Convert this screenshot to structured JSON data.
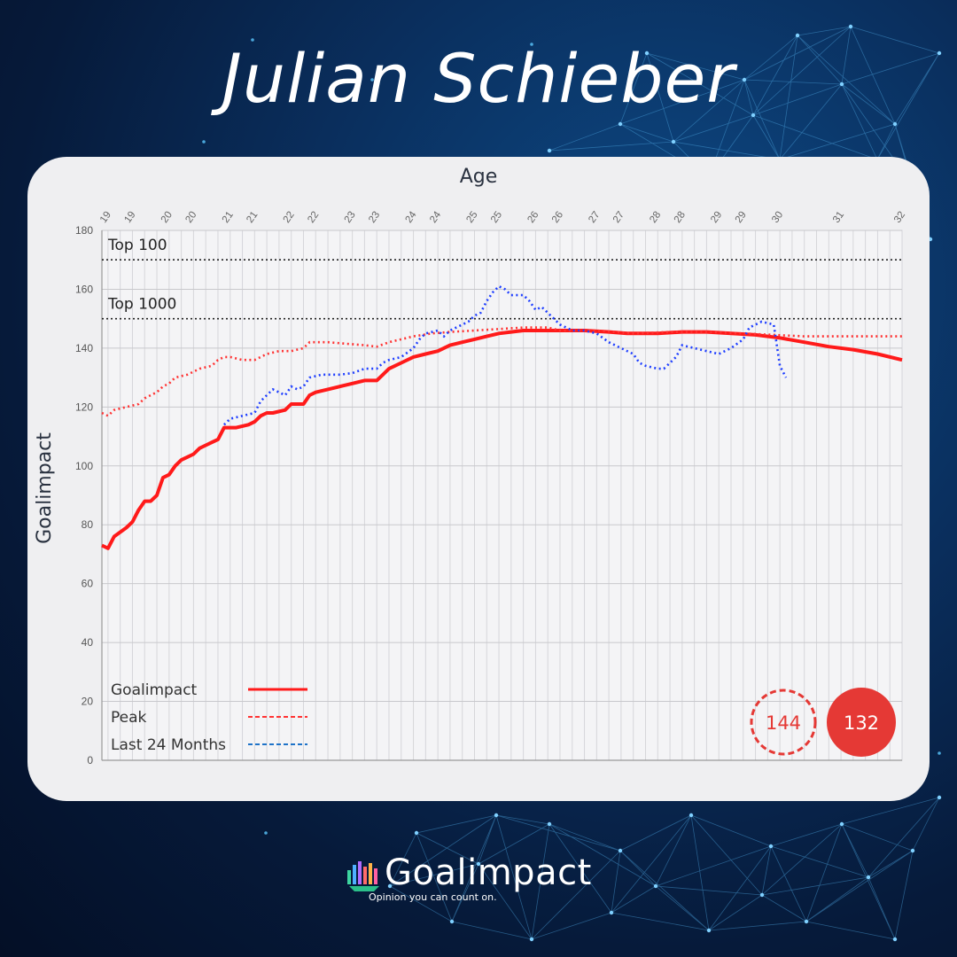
{
  "header": {
    "title": "Julian Schieber"
  },
  "brand": {
    "name": "Goalimpact",
    "tagline": "Opinion you can count on."
  },
  "colors": {
    "goalimpact": "#ff1a1a",
    "peak": "#ff3333",
    "last24": "#1f3fff",
    "badge_red": "#e53935",
    "card_bg": "#efeff1"
  },
  "chart_data": {
    "type": "line",
    "xlabel": "Age",
    "ylabel": "Goalimpact",
    "xlim": [
      18.9,
      32.0
    ],
    "ylim": [
      0,
      180
    ],
    "y_ticks": [
      0,
      20,
      40,
      60,
      80,
      100,
      120,
      140,
      160,
      180
    ],
    "x_tick_labels": [
      {
        "age": 19.0,
        "label": "19"
      },
      {
        "age": 19.4,
        "label": "19"
      },
      {
        "age": 20.0,
        "label": "20"
      },
      {
        "age": 20.4,
        "label": "20"
      },
      {
        "age": 21.0,
        "label": "21"
      },
      {
        "age": 21.4,
        "label": "21"
      },
      {
        "age": 22.0,
        "label": "22"
      },
      {
        "age": 22.4,
        "label": "22"
      },
      {
        "age": 23.0,
        "label": "23"
      },
      {
        "age": 23.4,
        "label": "23"
      },
      {
        "age": 24.0,
        "label": "24"
      },
      {
        "age": 24.4,
        "label": "24"
      },
      {
        "age": 25.0,
        "label": "25"
      },
      {
        "age": 25.4,
        "label": "25"
      },
      {
        "age": 26.0,
        "label": "26"
      },
      {
        "age": 26.4,
        "label": "26"
      },
      {
        "age": 27.0,
        "label": "27"
      },
      {
        "age": 27.4,
        "label": "27"
      },
      {
        "age": 28.0,
        "label": "28"
      },
      {
        "age": 28.4,
        "label": "28"
      },
      {
        "age": 29.0,
        "label": "29"
      },
      {
        "age": 29.4,
        "label": "29"
      },
      {
        "age": 30.0,
        "label": "30"
      },
      {
        "age": 31.0,
        "label": "31"
      },
      {
        "age": 32.0,
        "label": "32"
      }
    ],
    "reference_lines": [
      {
        "label": "Top 100",
        "y": 170
      },
      {
        "label": "Top 1000",
        "y": 150
      }
    ],
    "series": [
      {
        "name": "Goalimpact",
        "style": "solid",
        "points": [
          [
            18.9,
            73
          ],
          [
            19.0,
            72
          ],
          [
            19.1,
            76
          ],
          [
            19.3,
            79
          ],
          [
            19.4,
            81
          ],
          [
            19.5,
            85
          ],
          [
            19.6,
            88
          ],
          [
            19.7,
            88
          ],
          [
            19.8,
            90
          ],
          [
            19.9,
            96
          ],
          [
            20.0,
            97
          ],
          [
            20.1,
            100
          ],
          [
            20.2,
            102
          ],
          [
            20.3,
            103
          ],
          [
            20.4,
            104
          ],
          [
            20.5,
            106
          ],
          [
            20.6,
            107
          ],
          [
            20.7,
            108
          ],
          [
            20.8,
            109
          ],
          [
            20.9,
            113
          ],
          [
            21.0,
            113
          ],
          [
            21.1,
            113
          ],
          [
            21.3,
            114
          ],
          [
            21.4,
            115
          ],
          [
            21.5,
            117
          ],
          [
            21.6,
            118
          ],
          [
            21.7,
            118
          ],
          [
            21.9,
            119
          ],
          [
            22.0,
            121
          ],
          [
            22.2,
            121
          ],
          [
            22.3,
            124
          ],
          [
            22.4,
            125
          ],
          [
            22.6,
            126
          ],
          [
            22.8,
            127
          ],
          [
            23.0,
            128
          ],
          [
            23.2,
            129
          ],
          [
            23.4,
            129
          ],
          [
            23.5,
            131
          ],
          [
            23.6,
            133
          ],
          [
            23.8,
            135
          ],
          [
            24.0,
            137
          ],
          [
            24.2,
            138
          ],
          [
            24.4,
            139
          ],
          [
            24.6,
            141
          ],
          [
            24.8,
            142
          ],
          [
            25.0,
            143
          ],
          [
            25.2,
            144
          ],
          [
            25.4,
            145
          ],
          [
            25.6,
            145.5
          ],
          [
            25.8,
            146
          ],
          [
            26.0,
            146
          ],
          [
            26.2,
            146
          ],
          [
            26.4,
            146
          ],
          [
            26.8,
            146
          ],
          [
            27.2,
            145.5
          ],
          [
            27.5,
            145
          ],
          [
            28.0,
            145
          ],
          [
            28.4,
            145.5
          ],
          [
            28.8,
            145.5
          ],
          [
            29.2,
            145
          ],
          [
            29.6,
            144.5
          ],
          [
            30.0,
            143.5
          ],
          [
            30.4,
            142
          ],
          [
            30.8,
            140.5
          ],
          [
            31.2,
            139.5
          ],
          [
            31.6,
            138
          ],
          [
            32.0,
            136
          ]
        ]
      },
      {
        "name": "Peak",
        "style": "dashed",
        "points": [
          [
            18.9,
            118
          ],
          [
            19.0,
            117
          ],
          [
            19.1,
            119
          ],
          [
            19.3,
            120
          ],
          [
            19.5,
            121
          ],
          [
            19.6,
            123
          ],
          [
            19.7,
            124
          ],
          [
            19.8,
            125
          ],
          [
            19.9,
            127
          ],
          [
            20.0,
            128
          ],
          [
            20.1,
            130
          ],
          [
            20.3,
            131
          ],
          [
            20.5,
            133
          ],
          [
            20.7,
            134
          ],
          [
            20.8,
            136
          ],
          [
            20.9,
            137
          ],
          [
            21.0,
            137
          ],
          [
            21.2,
            136
          ],
          [
            21.4,
            136
          ],
          [
            21.5,
            137
          ],
          [
            21.6,
            138
          ],
          [
            21.8,
            139
          ],
          [
            22.0,
            139
          ],
          [
            22.2,
            140
          ],
          [
            22.3,
            142
          ],
          [
            22.6,
            142
          ],
          [
            22.9,
            141.5
          ],
          [
            23.2,
            141
          ],
          [
            23.4,
            140.5
          ],
          [
            23.6,
            142
          ],
          [
            23.8,
            143
          ],
          [
            24.0,
            144
          ],
          [
            24.3,
            145
          ],
          [
            24.6,
            145.5
          ],
          [
            25.0,
            146
          ],
          [
            25.4,
            146.5
          ],
          [
            25.8,
            147
          ],
          [
            26.2,
            147
          ],
          [
            26.4,
            146
          ],
          [
            27.0,
            146
          ],
          [
            27.6,
            145
          ],
          [
            28.2,
            145.5
          ],
          [
            28.8,
            145.5
          ],
          [
            29.4,
            145
          ],
          [
            29.9,
            144.5
          ],
          [
            30.4,
            144
          ],
          [
            31.0,
            144
          ],
          [
            31.5,
            144
          ],
          [
            32.0,
            144
          ]
        ]
      },
      {
        "name": "Last 24 Months",
        "style": "dashed",
        "points": [
          [
            20.9,
            114
          ],
          [
            21.0,
            116
          ],
          [
            21.2,
            117
          ],
          [
            21.4,
            118
          ],
          [
            21.5,
            122
          ],
          [
            21.6,
            124
          ],
          [
            21.7,
            126
          ],
          [
            21.8,
            125
          ],
          [
            21.9,
            124
          ],
          [
            22.0,
            127
          ],
          [
            22.1,
            126
          ],
          [
            22.2,
            127
          ],
          [
            22.3,
            130
          ],
          [
            22.5,
            131
          ],
          [
            22.8,
            131
          ],
          [
            23.0,
            131.5
          ],
          [
            23.2,
            133
          ],
          [
            23.4,
            133
          ],
          [
            23.5,
            135
          ],
          [
            23.6,
            136
          ],
          [
            23.8,
            137
          ],
          [
            24.0,
            140
          ],
          [
            24.1,
            143
          ],
          [
            24.2,
            145
          ],
          [
            24.4,
            146
          ],
          [
            24.5,
            144
          ],
          [
            24.6,
            146
          ],
          [
            24.8,
            148
          ],
          [
            24.9,
            149
          ],
          [
            25.0,
            151
          ],
          [
            25.1,
            152
          ],
          [
            25.2,
            156
          ],
          [
            25.3,
            159
          ],
          [
            25.4,
            161
          ],
          [
            25.5,
            160
          ],
          [
            25.6,
            158
          ],
          [
            25.8,
            158
          ],
          [
            25.9,
            156
          ],
          [
            26.0,
            153
          ],
          [
            26.1,
            154
          ],
          [
            26.2,
            152
          ],
          [
            26.3,
            150
          ],
          [
            26.4,
            148
          ],
          [
            26.6,
            146
          ],
          [
            26.8,
            146
          ],
          [
            27.0,
            145
          ],
          [
            27.2,
            142
          ],
          [
            27.4,
            140
          ],
          [
            27.6,
            138
          ],
          [
            27.7,
            135
          ],
          [
            27.8,
            134
          ],
          [
            28.0,
            133
          ],
          [
            28.1,
            133
          ],
          [
            28.2,
            135
          ],
          [
            28.3,
            137
          ],
          [
            28.4,
            141
          ],
          [
            28.6,
            140
          ],
          [
            28.8,
            139
          ],
          [
            29.0,
            138
          ],
          [
            29.2,
            140
          ],
          [
            29.4,
            143
          ],
          [
            29.5,
            147
          ],
          [
            29.7,
            149
          ],
          [
            29.9,
            148
          ],
          [
            30.0,
            134
          ],
          [
            30.1,
            130
          ]
        ]
      }
    ],
    "legend": {
      "placement": "bottom-left",
      "entries": [
        "Goalimpact",
        "Peak",
        "Last 24 Months"
      ]
    },
    "badges": [
      {
        "name": "peak",
        "value": "144",
        "style": "dashed-outline"
      },
      {
        "name": "current",
        "value": "132",
        "style": "filled"
      }
    ],
    "grid": true
  }
}
